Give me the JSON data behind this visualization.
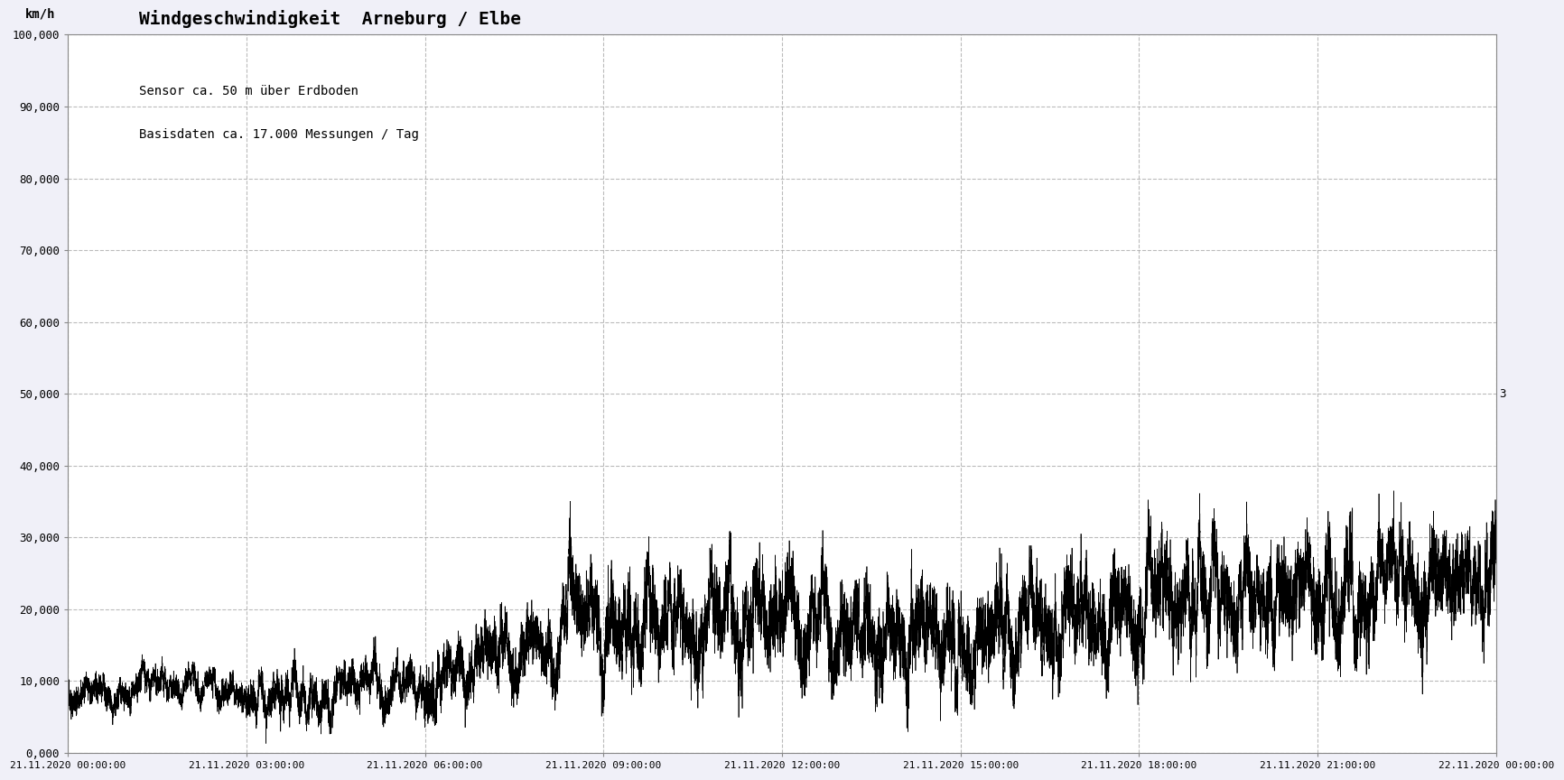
{
  "title": "Windgeschwindigkeit  Arneburg / Elbe",
  "ylabel": "km/h",
  "annotation1": "Sensor ca. 50 m über Erdboden",
  "annotation2": "Basisdaten ca. 17.000 Messungen / Tag",
  "ylim": [
    0,
    100000
  ],
  "ytick_labels": [
    "0,000",
    "10,000",
    "20,000",
    "30,000",
    "40,000",
    "50,000",
    "60,000",
    "70,000",
    "80,000",
    "90,000",
    "100,000"
  ],
  "xtick_labels": [
    "21.11.2020 00:00:00",
    "21.11.2020 03:00:00",
    "21.11.2020 06:00:00",
    "21.11.2020 09:00:00",
    "21.11.2020 12:00:00",
    "21.11.2020 15:00:00",
    "21.11.2020 18:00:00",
    "21.11.2020 21:00:00",
    "22.11.2020 00:00:00"
  ],
  "line_color": "#000000",
  "background_color": "#f0f0f8",
  "plot_bg_color": "#ffffff",
  "grid_color": "#aaaaaa",
  "title_fontsize": 14,
  "annotation_fontsize": 10,
  "ylabel_fontsize": 10,
  "n_points": 17280,
  "seed": 42,
  "right_label": "3"
}
